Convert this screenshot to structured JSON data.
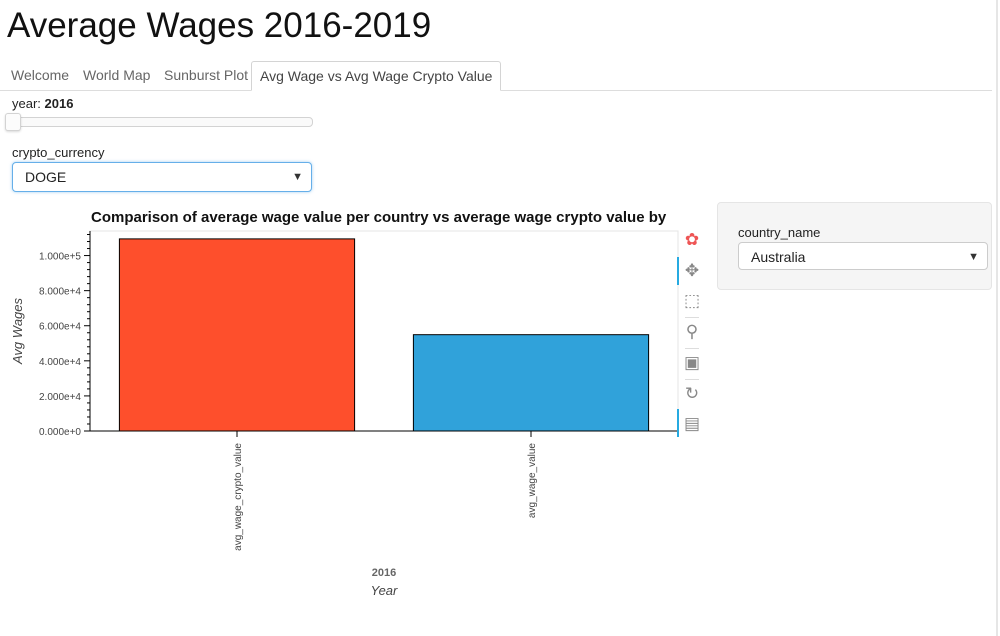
{
  "page_title": "Average Wages 2016-2019",
  "tabs": [
    {
      "label": "Welcome"
    },
    {
      "label": "World Map"
    },
    {
      "label": "Sunburst Plot"
    },
    {
      "label": "Avg Wage vs Avg Wage Crypto Value"
    }
  ],
  "active_tab": 3,
  "year_widget": {
    "label": "year: ",
    "value": "2016",
    "min": 2016,
    "max": 2019
  },
  "crypto_widget": {
    "label": "crypto_currency",
    "selected": "DOGE"
  },
  "country_widget": {
    "label": "country_name",
    "selected": "Australia"
  },
  "colors": {
    "bar1": "#fe4f2c",
    "bar2": "#30a2da",
    "accent": "#26aae1"
  },
  "toolbar_icons": [
    "bokeh-logo-icon",
    "pan-icon",
    "box-zoom-icon",
    "wheel-zoom-icon",
    "save-icon",
    "reset-icon",
    "hover-icon"
  ],
  "chart_data": {
    "type": "bar",
    "title": "Comparison of average wage value per country vs average wage crypto value by",
    "categories": [
      "avg_wage_crypto_value",
      "avg_wage_value"
    ],
    "values": [
      109500,
      54900
    ],
    "group_label": "2016",
    "xlabel": "Year",
    "ylabel": "Avg Wages",
    "ylim": [
      0,
      114000
    ],
    "y_ticks": [
      "0.000e+0",
      "2.000e+4",
      "4.000e+4",
      "6.000e+4",
      "8.000e+4",
      "1.000e+5"
    ],
    "grid": false,
    "legend": "none"
  }
}
